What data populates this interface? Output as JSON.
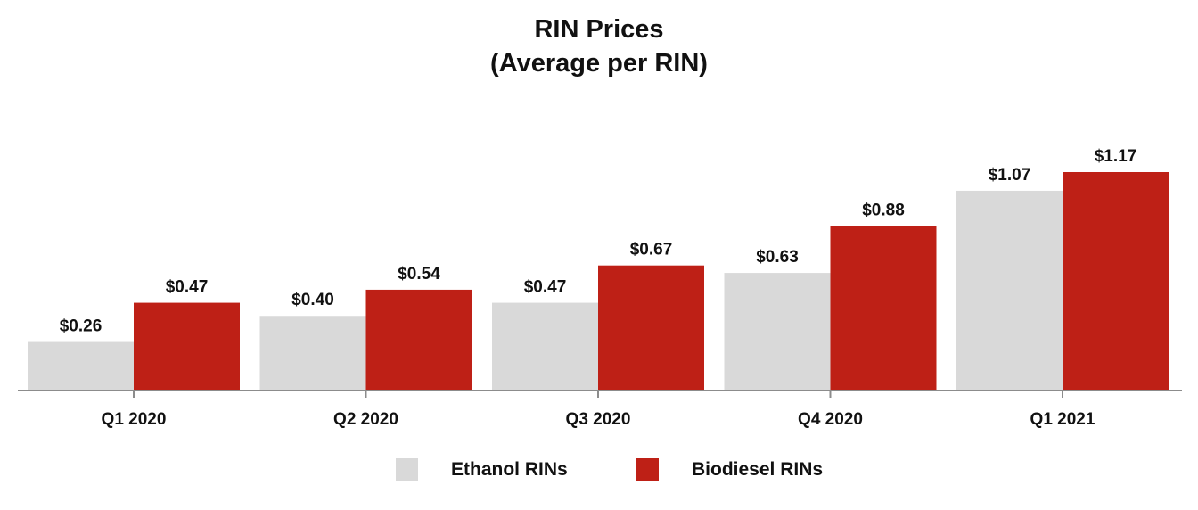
{
  "title_line1": "RIN Prices",
  "title_line2": "(Average per RIN)",
  "chart_data": {
    "type": "bar",
    "title": "RIN Prices (Average per RIN)",
    "categories": [
      "Q1 2020",
      "Q2 2020",
      "Q3 2020",
      "Q4 2020",
      "Q1 2021"
    ],
    "series": [
      {
        "name": "Ethanol RINs",
        "color": "#d9d9d9",
        "values": [
          0.26,
          0.4,
          0.47,
          0.63,
          1.07
        ],
        "labels": [
          "$0.26",
          "$0.40",
          "$0.47",
          "$0.63",
          "$1.07"
        ]
      },
      {
        "name": "Biodiesel RINs",
        "color": "#be2016",
        "values": [
          0.47,
          0.54,
          0.67,
          0.88,
          1.17
        ],
        "labels": [
          "$0.47",
          "$0.54",
          "$0.67",
          "$0.88",
          "$1.17"
        ]
      }
    ],
    "xlabel": "",
    "ylabel": "",
    "ylim": [
      0,
      1.17
    ],
    "grid": false,
    "legend_position": "bottom",
    "axis_color": "#8c8c8c"
  }
}
